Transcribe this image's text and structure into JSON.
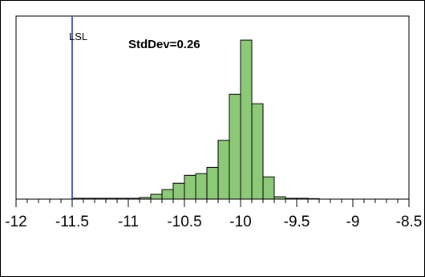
{
  "chart_data": {
    "type": "bar",
    "title": "",
    "xlabel": "",
    "ylabel": "",
    "xlim": [
      -12,
      -8.5
    ],
    "ylim": [
      0,
      100
    ],
    "x_ticks": [
      -12,
      -11.5,
      -11,
      -10.5,
      -10,
      -9.5,
      -9,
      -8.5
    ],
    "x_tick_labels": [
      "-12",
      "-11.5",
      "-11",
      "-10.5",
      "-10",
      "-9.5",
      "-9",
      "-8.5"
    ],
    "bin_width": 0.1,
    "bins_start": [
      -11.5,
      -11.4,
      -11.3,
      -11.2,
      -11.1,
      -11.0,
      -10.9,
      -10.8,
      -10.7,
      -10.6,
      -10.5,
      -10.4,
      -10.3,
      -10.2,
      -10.1,
      -10.0,
      -9.9,
      -9.8,
      -9.7,
      -9.6,
      -9.5,
      -9.4
    ],
    "values": [
      0.5,
      0.5,
      0.5,
      0.5,
      0.5,
      0.5,
      1,
      3,
      6,
      10,
      15,
      16,
      20,
      37,
      66,
      100,
      60,
      14,
      1.5,
      0.5,
      0.5,
      0.3
    ],
    "bar_color": "#8dca78",
    "bar_outline": "#000000",
    "reference_lines": [
      {
        "label": "LSL",
        "x": -11.5,
        "color": "#4f63c8"
      }
    ],
    "annotations": [
      {
        "text": "StdDev=0.26"
      }
    ],
    "grid": false,
    "legend": "none"
  }
}
